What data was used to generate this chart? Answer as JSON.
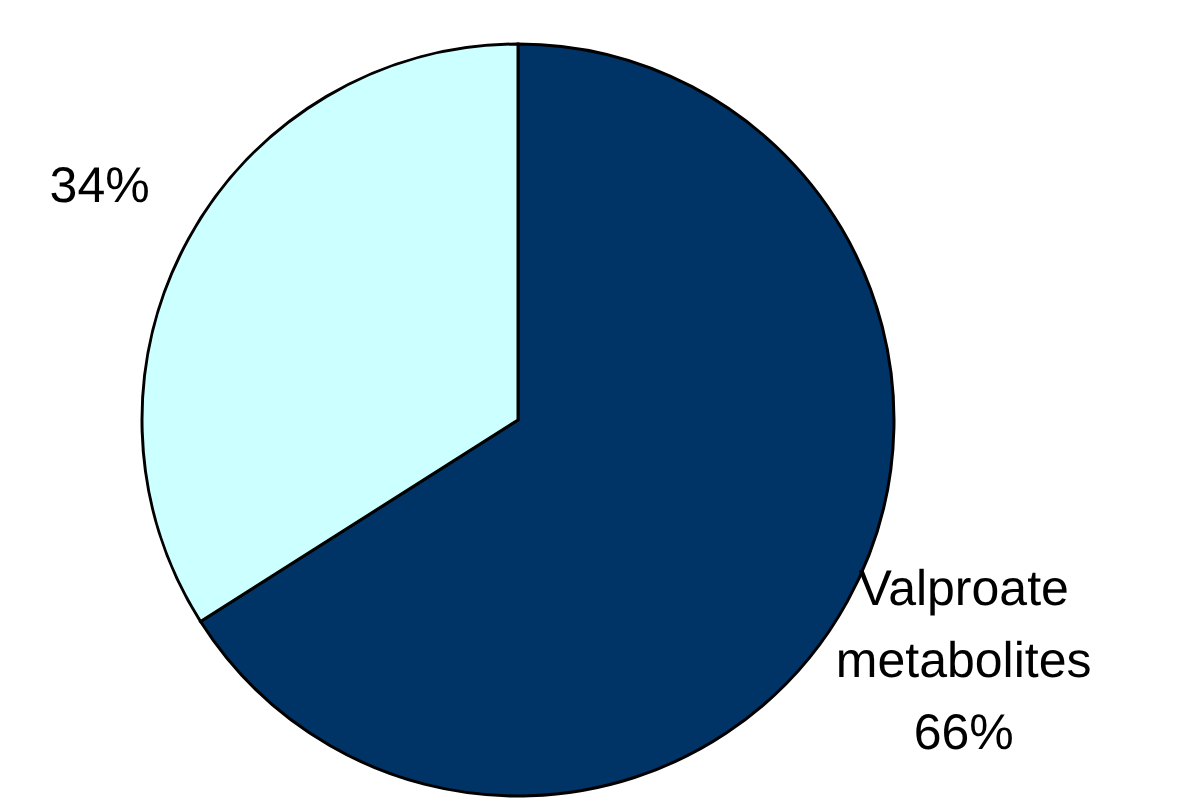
{
  "chart_data": {
    "type": "pie",
    "categories": [
      "Valproate metabolites",
      null
    ],
    "values": [
      66,
      34
    ],
    "colors": [
      "#003366",
      "#ccffff"
    ],
    "value_labels": [
      "66%",
      "34%"
    ],
    "legend": false
  }
}
